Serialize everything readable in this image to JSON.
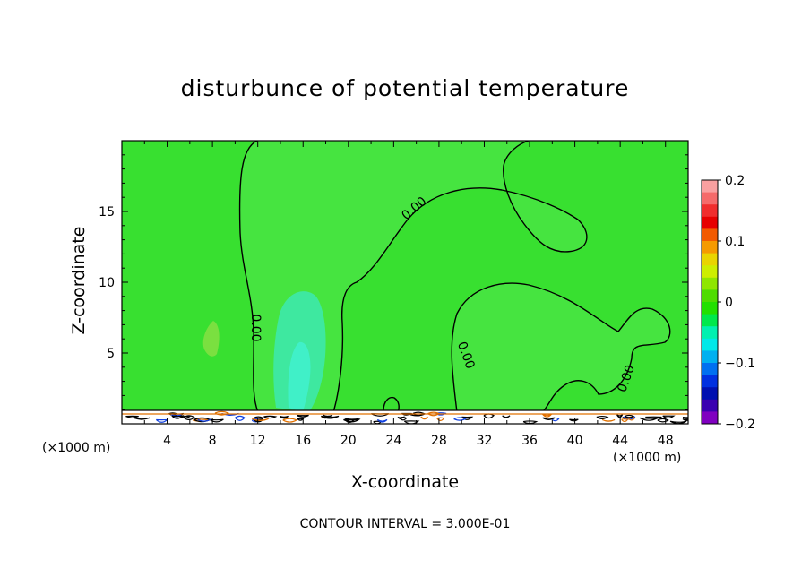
{
  "title": "disturbunce of potential temperature",
  "xlabel": "X-coordinate",
  "ylabel": "Z-coordinate",
  "x_unit_left": "(×1000 m)",
  "x_unit_right": "(×1000 m)",
  "footer": "CONTOUR INTERVAL = 3.000E-01",
  "chart_data": {
    "type": "heatmap",
    "title": "disturbunce of potential temperature",
    "xlabel": "X-coordinate",
    "ylabel": "Z-coordinate",
    "xlim": [
      0,
      50
    ],
    "ylim": [
      0,
      20
    ],
    "x_ticks": [
      4,
      8,
      12,
      16,
      20,
      24,
      28,
      32,
      36,
      40,
      44,
      48
    ],
    "y_ticks": [
      5,
      10,
      15
    ],
    "colorbar": {
      "ticks": [
        0.2,
        0.1,
        0,
        -0.1,
        -0.2
      ],
      "tick_labels": [
        "0.2",
        "0.1",
        "0",
        "−0.1",
        "−0.2"
      ],
      "bands": [
        "#f9a0a0",
        "#f56a6a",
        "#f02d2d",
        "#e60000",
        "#f25a00",
        "#f59a00",
        "#e9d400",
        "#cdee00",
        "#8fe600",
        "#4fdc00",
        "#22e000",
        "#00e84c",
        "#00f0b0",
        "#00e8e8",
        "#00b0f0",
        "#0070f0",
        "#0030e0",
        "#0010b0",
        "#3a00b0",
        "#8000c0"
      ]
    },
    "background_value_color": "#38e030",
    "contour_labels": [
      "0.00",
      "0.00",
      "0.00",
      "0.00"
    ],
    "contour_interval": "3.000E-01"
  }
}
